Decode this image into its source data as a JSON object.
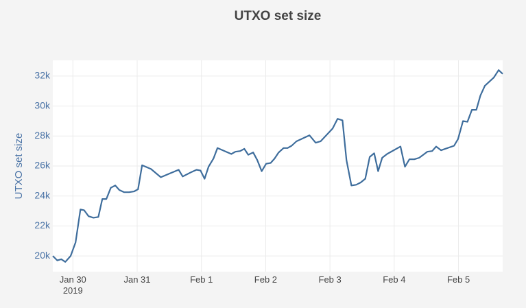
{
  "chart_data": {
    "type": "line",
    "title": "UTXO set size",
    "y_label": "UTXO set size",
    "x": [
      "2019-01-29T16:30",
      "2019-01-29T18:10",
      "2019-01-29T19:40",
      "2019-01-29T21:10",
      "2019-01-29T23:10",
      "2019-01-30T01:00",
      "2019-01-30T02:50",
      "2019-01-30T04:10",
      "2019-01-30T05:50",
      "2019-01-30T07:40",
      "2019-01-30T09:30",
      "2019-01-30T11:00",
      "2019-01-30T12:30",
      "2019-01-30T14:10",
      "2019-01-30T15:50",
      "2019-01-30T17:20",
      "2019-01-30T19:10",
      "2019-01-30T21:00",
      "2019-01-30T22:50",
      "2019-01-31T00:20",
      "2019-01-31T01:50",
      "2019-01-31T05:10",
      "2019-01-31T08:50",
      "2019-01-31T12:10",
      "2019-01-31T15:30",
      "2019-01-31T17:00",
      "2019-01-31T20:20",
      "2019-01-31T22:10",
      "2019-01-31T23:40",
      "2019-02-01T01:10",
      "2019-02-01T02:40",
      "2019-02-01T04:30",
      "2019-02-01T06:00",
      "2019-02-01T11:10",
      "2019-02-01T12:40",
      "2019-02-01T14:30",
      "2019-02-01T16:00",
      "2019-02-01T17:30",
      "2019-02-01T19:20",
      "2019-02-01T20:50",
      "2019-02-01T22:30",
      "2019-02-02T00:10",
      "2019-02-02T01:50",
      "2019-02-02T03:20",
      "2019-02-02T04:50",
      "2019-02-02T06:40",
      "2019-02-02T08:10",
      "2019-02-02T09:40",
      "2019-02-02T11:30",
      "2019-02-02T16:20",
      "2019-02-02T18:40",
      "2019-02-02T20:30",
      "2019-02-03T01:00",
      "2019-02-03T02:50",
      "2019-02-03T04:40",
      "2019-02-03T06:10",
      "2019-02-03T08:00",
      "2019-02-03T09:50",
      "2019-02-03T11:30",
      "2019-02-03T13:10",
      "2019-02-03T14:50",
      "2019-02-03T16:30",
      "2019-02-03T18:00",
      "2019-02-03T19:30",
      "2019-02-03T21:20",
      "2019-02-04T02:20",
      "2019-02-04T04:00",
      "2019-02-04T05:40",
      "2019-02-04T07:30",
      "2019-02-04T09:20",
      "2019-02-04T10:50",
      "2019-02-04T12:20",
      "2019-02-04T14:10",
      "2019-02-04T15:40",
      "2019-02-04T17:30",
      "2019-02-04T22:20",
      "2019-02-04T23:50",
      "2019-02-05T01:40",
      "2019-02-05T03:20",
      "2019-02-05T05:00",
      "2019-02-05T06:40",
      "2019-02-05T08:10",
      "2019-02-05T09:50",
      "2019-02-05T13:10",
      "2019-02-05T15:00",
      "2019-02-05T16:30"
    ],
    "series": [
      {
        "name": "UTXO set size",
        "color": "#3e6d9c",
        "values": [
          20000,
          19700,
          19780,
          19600,
          20000,
          20900,
          23100,
          23050,
          22650,
          22550,
          22600,
          23800,
          23800,
          24550,
          24700,
          24400,
          24250,
          24250,
          24300,
          24450,
          26050,
          25800,
          25250,
          25500,
          25750,
          25300,
          25600,
          25750,
          25700,
          25150,
          25950,
          26500,
          27200,
          26800,
          26950,
          27000,
          27150,
          26750,
          26900,
          26400,
          25650,
          26150,
          26200,
          26500,
          26900,
          27200,
          27200,
          27350,
          27650,
          28050,
          27550,
          27650,
          28500,
          29150,
          29050,
          26400,
          24700,
          24750,
          24900,
          25150,
          26600,
          26850,
          25650,
          26550,
          26800,
          27300,
          25950,
          26450,
          26450,
          26550,
          26750,
          26950,
          27000,
          27300,
          27050,
          27350,
          27800,
          29000,
          28950,
          29750,
          29750,
          30700,
          31350,
          31900,
          32400,
          32150
        ]
      }
    ],
    "xlim": [
      "2019-01-29T16:30",
      "2019-02-05T16:30"
    ],
    "xticks": [
      {
        "value": "2019-01-30T00:00",
        "label": "Jan 30\n2019"
      },
      {
        "value": "2019-01-31T00:00",
        "label": "Jan 31"
      },
      {
        "value": "2019-02-01T00:00",
        "label": "Feb 1"
      },
      {
        "value": "2019-02-02T00:00",
        "label": "Feb 2"
      },
      {
        "value": "2019-02-03T00:00",
        "label": "Feb 3"
      },
      {
        "value": "2019-02-04T00:00",
        "label": "Feb 4"
      },
      {
        "value": "2019-02-05T00:00",
        "label": "Feb 5"
      }
    ],
    "ylim": [
      18950,
      33050
    ],
    "yticks": [
      {
        "value": 20000,
        "label": "20k"
      },
      {
        "value": 22000,
        "label": "22k"
      },
      {
        "value": 24000,
        "label": "24k"
      },
      {
        "value": 26000,
        "label": "26k"
      },
      {
        "value": 28000,
        "label": "28k"
      },
      {
        "value": 30000,
        "label": "30k"
      },
      {
        "value": 32000,
        "label": "32k"
      }
    ],
    "grid": true
  }
}
